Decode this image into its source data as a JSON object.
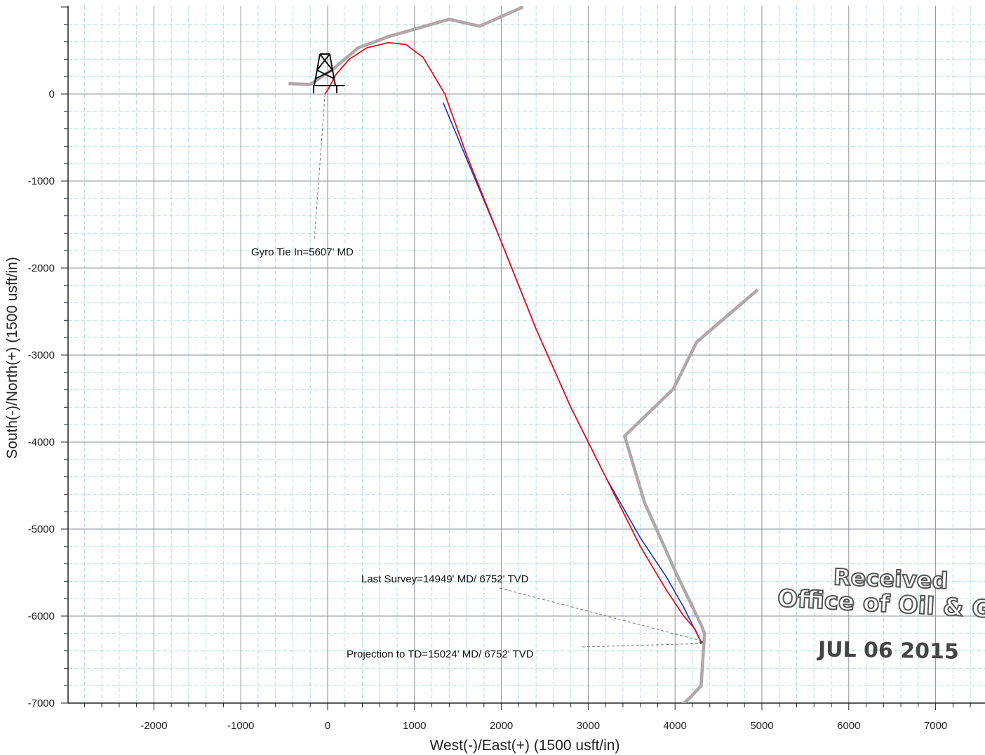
{
  "chart_data": {
    "type": "line",
    "title": "",
    "xlabel": "West(-)/East(+) (1500 usft/in)",
    "ylabel": "South(-)/North(+) (1500 usft/in)",
    "xlim": [
      -2800,
      7500
    ],
    "ylim": [
      -7000,
      1000
    ],
    "x_ticks": [
      -2000,
      -1000,
      0,
      1000,
      2000,
      3000,
      4000,
      5000,
      6000,
      7000
    ],
    "x_tick_labels": [
      "-2000",
      "-1000",
      "0",
      "1000",
      "2000",
      "3000",
      "4000",
      "5000",
      "6000",
      "7000"
    ],
    "y_ticks": [
      0,
      -1000,
      -2000,
      -3000,
      -4000,
      -5000,
      -6000,
      -7000
    ],
    "y_tick_labels": [
      "0",
      "-1000",
      "-2000",
      "-3000",
      "-4000",
      "-5000",
      "-6000",
      "-7000"
    ],
    "grid": true,
    "colors": {
      "grid_major": "#8a8f95",
      "grid_minor": "#b9dbe6",
      "actual": "#e3101c",
      "plan": "#1a2fb8",
      "offset": "#a8a8a8"
    },
    "series": [
      {
        "style": "actual",
        "x": [
          -30,
          10,
          100,
          250,
          450,
          700,
          900,
          1100,
          1350,
          1600,
          2000,
          2400,
          2800,
          3200,
          3600,
          3900,
          4100,
          4230,
          4300
        ],
        "y": [
          0,
          60,
          230,
          400,
          530,
          590,
          570,
          420,
          0,
          -700,
          -1700,
          -2700,
          -3600,
          -4400,
          -5200,
          -5700,
          -6000,
          -6150,
          -6300
        ]
      },
      {
        "style": "plan",
        "x": [
          1330,
          2000,
          2400,
          2800,
          3200,
          3600,
          3900,
          4100,
          4300
        ],
        "y": [
          -100,
          -1700,
          -2700,
          -3600,
          -4400,
          -5100,
          -5550,
          -5900,
          -6300
        ]
      },
      {
        "style": "offset",
        "x": [
          -450,
          -200,
          80,
          350,
          700,
          1400,
          1750,
          2250
        ],
        "y": [
          120,
          110,
          300,
          530,
          660,
          860,
          780,
          1000
        ]
      },
      {
        "style": "offset",
        "x": [
          4950,
          4250,
          3980,
          3420,
          3650,
          4010,
          4300,
          4340,
          4300,
          4180,
          4050
        ],
        "y": [
          -2250,
          -2850,
          -3390,
          -3930,
          -4700,
          -5500,
          -6100,
          -6200,
          -6800,
          -6930,
          -7050
        ]
      }
    ],
    "annotations": [
      {
        "id": "gyro",
        "text": "Gyro Tie In=5607' MD",
        "x": -30,
        "y": 0
      },
      {
        "id": "last-survey",
        "text": "Last Survey=14949' MD/ 6752' TVD",
        "x": 4300,
        "y": -6300
      },
      {
        "id": "projection",
        "text": "Projection to TD=15024' MD/ 6752' TVD",
        "x": 4300,
        "y": -6300
      }
    ]
  },
  "stamp": {
    "line1": "Received",
    "line2": "Office of Oil & Gas",
    "line3": "JUL 06 2015"
  }
}
